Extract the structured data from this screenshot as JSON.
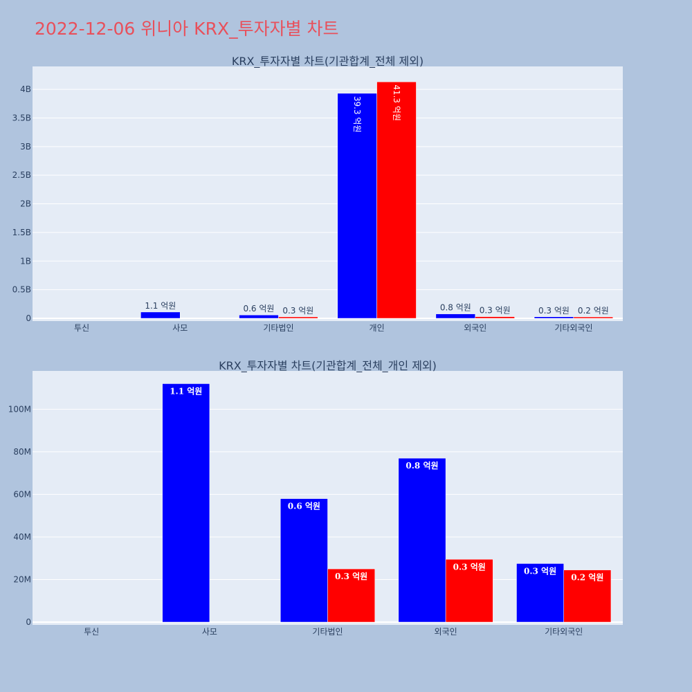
{
  "page_title": "2022-12-06 위니아 KRX_투자자별 차트",
  "colors": {
    "background": "#b0c4de",
    "plot_bg": "#e5ecf6",
    "series_buy": "#0000ff",
    "series_sell": "#ff0000",
    "title": "#e8505b"
  },
  "chart_data": [
    {
      "type": "bar",
      "title": "KRX_투자자별 차트(기관합계_전체 제외)",
      "categories": [
        "투신",
        "사모",
        "기타법인",
        "개인",
        "외국인",
        "기타외국인"
      ],
      "series": [
        {
          "values": [
            0,
            110000000,
            58000000,
            3930000000,
            77000000,
            27000000
          ],
          "labels": [
            "",
            "1.1 억원",
            "0.6 억원",
            "39.3 억원",
            "0.8 억원",
            "0.3 억원"
          ]
        },
        {
          "values": [
            0,
            0,
            25000000,
            4130000000,
            29000000,
            24000000
          ],
          "labels": [
            "",
            "",
            "0.3 억원",
            "41.3 억원",
            "0.3 억원",
            "0.2 억원"
          ]
        }
      ],
      "yticks": [
        0,
        500000000,
        1000000000,
        1500000000,
        2000000000,
        2500000000,
        3000000000,
        3500000000,
        4000000000
      ],
      "ytick_labels": [
        "0",
        "0.5B",
        "1B",
        "1.5B",
        "2B",
        "2.5B",
        "3B",
        "3.5B",
        "4B"
      ],
      "ylim": [
        0,
        4400000000
      ],
      "grid": true
    },
    {
      "type": "bar",
      "title": "KRX_투자자별 차트(기관합계_전체_개인 제외)",
      "categories": [
        "투신",
        "사모",
        "기타법인",
        "외국인",
        "기타외국인"
      ],
      "series": [
        {
          "values": [
            0,
            112000000,
            58000000,
            77000000,
            27500000
          ],
          "labels": [
            "",
            "1.1 억원",
            "0.6 억원",
            "0.8 억원",
            "0.3 억원"
          ]
        },
        {
          "values": [
            0,
            0,
            25000000,
            29500000,
            24500000
          ],
          "labels": [
            "",
            "",
            "0.3 억원",
            "0.3 억원",
            "0.2 억원"
          ]
        }
      ],
      "yticks": [
        0,
        20000000,
        40000000,
        60000000,
        80000000,
        100000000
      ],
      "ytick_labels": [
        "0",
        "20M",
        "40M",
        "60M",
        "80M",
        "100M"
      ],
      "ylim": [
        0,
        118000000
      ],
      "grid": true
    }
  ]
}
